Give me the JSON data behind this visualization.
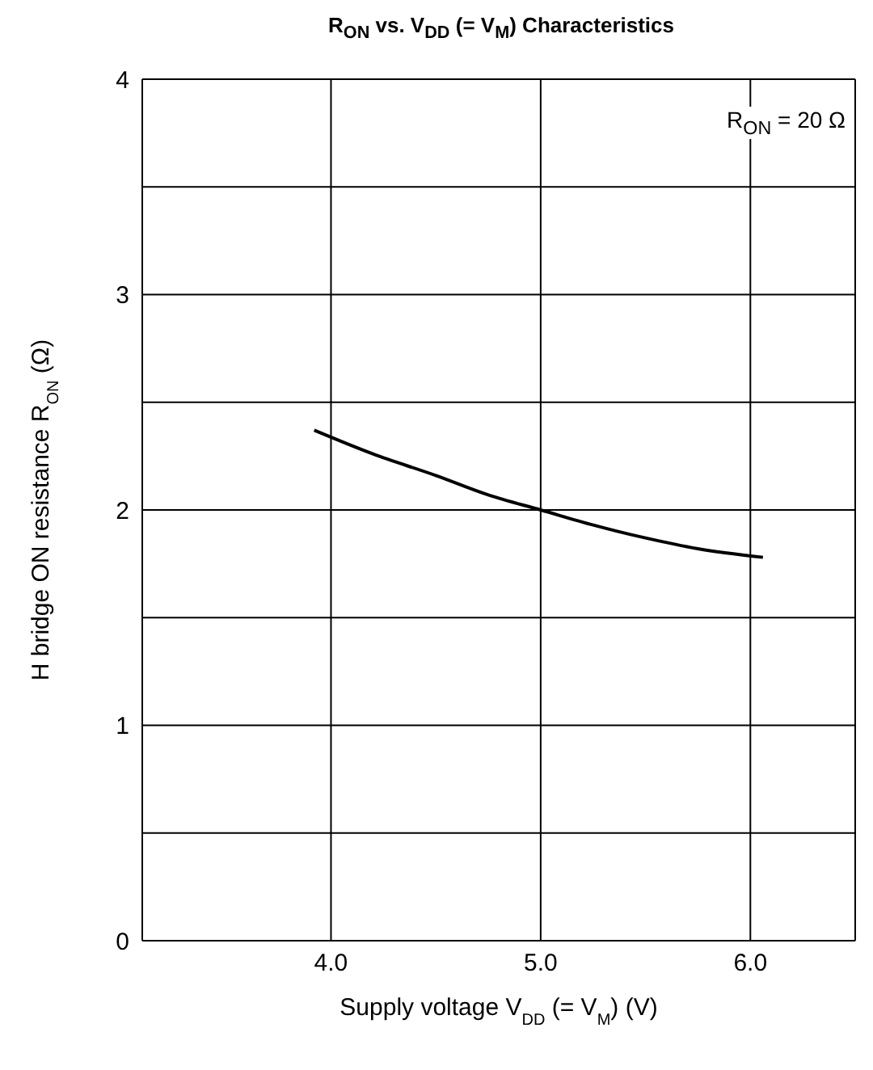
{
  "chart_data": {
    "type": "line",
    "title": "R$_{ON}$ vs. V$_{DD}$ (= V$_{M}$) Characteristics",
    "xlabel": "Supply voltage V$_{DD}$ (= V$_{M}$) (V)",
    "ylabel": "H bridge ON resistance R$_{ON}$ (Ω)",
    "annotations": [
      "R$_{ON}$ = 20 Ω"
    ],
    "x": [
      3.92,
      4.2,
      4.5,
      4.75,
      5.0,
      5.25,
      5.5,
      5.75,
      6.06
    ],
    "series": [
      {
        "color": "#000000",
        "values": [
          2.37,
          2.26,
          2.16,
          2.07,
          2.0,
          1.93,
          1.87,
          1.82,
          1.78
        ]
      }
    ],
    "xlim": [
      3.1,
      6.5
    ],
    "xticks": [
      {
        "value": 4,
        "label": "4.0"
      },
      {
        "value": 5,
        "label": "5.0"
      },
      {
        "value": 6,
        "label": "6.0"
      }
    ],
    "ylim": [
      0,
      4
    ],
    "yticks": [
      0,
      {
        "value": 0.5,
        "label": null
      },
      1,
      {
        "value": 1.5,
        "label": null
      },
      2,
      {
        "value": 2.5,
        "label": null
      },
      3,
      {
        "value": 3.5,
        "label": null
      },
      4
    ],
    "grid": true,
    "marker": "none",
    "line_style": "solid"
  }
}
